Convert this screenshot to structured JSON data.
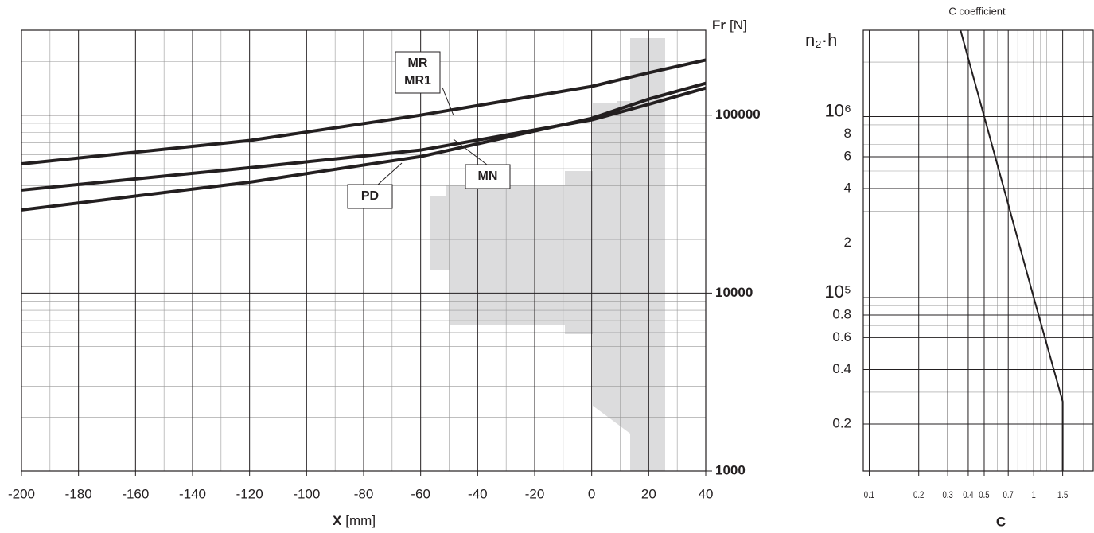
{
  "chart_data": [
    {
      "type": "line",
      "x_label": "X",
      "x_unit": "[mm]",
      "y_label": "Fr",
      "y_unit": "[N]",
      "log_y": true,
      "xlim": [
        -200,
        40
      ],
      "xticks": [
        -200,
        -180,
        -160,
        -140,
        -120,
        -100,
        -80,
        -60,
        -40,
        -20,
        0,
        20,
        40
      ],
      "xgrid_minor": [
        -190,
        -170,
        -150,
        -130,
        -110,
        -90,
        -70,
        -50,
        -30,
        -10,
        10,
        30
      ],
      "ylim": [
        1000,
        300000
      ],
      "yticks": [
        1000,
        10000,
        100000
      ],
      "ygrid_minor": [
        2000,
        3000,
        4000,
        5000,
        6000,
        7000,
        8000,
        9000,
        20000,
        30000,
        40000,
        50000,
        60000,
        70000,
        80000,
        90000,
        200000
      ],
      "x": [
        -200,
        -120,
        -60,
        0,
        20,
        40
      ],
      "series": [
        {
          "labels": [
            "MR",
            "MR1"
          ],
          "color": "#231f20",
          "values": [
            53200,
            72000,
            100000,
            145000,
            173000,
            204000
          ]
        },
        {
          "labels": [
            "MN"
          ],
          "color": "#231f20",
          "values": [
            37900,
            50600,
            63600,
            94000,
            115000,
            142000
          ]
        },
        {
          "labels": [
            "PD"
          ],
          "color": "#231f20",
          "values": [
            29300,
            42000,
            58500,
            96000,
            123000,
            151000
          ]
        }
      ]
    },
    {
      "type": "line",
      "title": "C coefficient",
      "x_label": "C",
      "y_label": "n₂·h",
      "log_x": true,
      "log_y": true,
      "xlim": [
        0.092,
        2.3
      ],
      "xticks": [
        0.1,
        0.2,
        0.3,
        0.4,
        0.5,
        0.7,
        1,
        1.5
      ],
      "xgrid_minor": [
        0.6,
        0.8,
        0.9,
        1.1,
        1.2,
        2
      ],
      "ylim": [
        11000,
        3000000
      ],
      "yticks": [
        {
          "value": 20000,
          "label": "0.2"
        },
        {
          "value": 40000,
          "label": "0.4"
        },
        {
          "value": 60000,
          "label": "0.6"
        },
        {
          "value": 80000,
          "label": "0.8"
        },
        {
          "value": 100000,
          "label": "10⁵"
        },
        {
          "value": 200000,
          "label": "2"
        },
        {
          "value": 400000,
          "label": "4"
        },
        {
          "value": 600000,
          "label": "6"
        },
        {
          "value": 800000,
          "label": "8"
        },
        {
          "value": 1000000,
          "label": "10⁶"
        }
      ],
      "ygrid_minor": [
        30000,
        50000,
        70000,
        90000,
        300000,
        500000,
        700000,
        900000,
        2000000
      ],
      "series": [
        {
          "color": "#231f20",
          "x": [
            0.359,
            0.5,
            1,
            1.5,
            1.5
          ],
          "values": [
            3000000,
            1000000,
            100000,
            26600,
            11000
          ]
        }
      ]
    }
  ]
}
